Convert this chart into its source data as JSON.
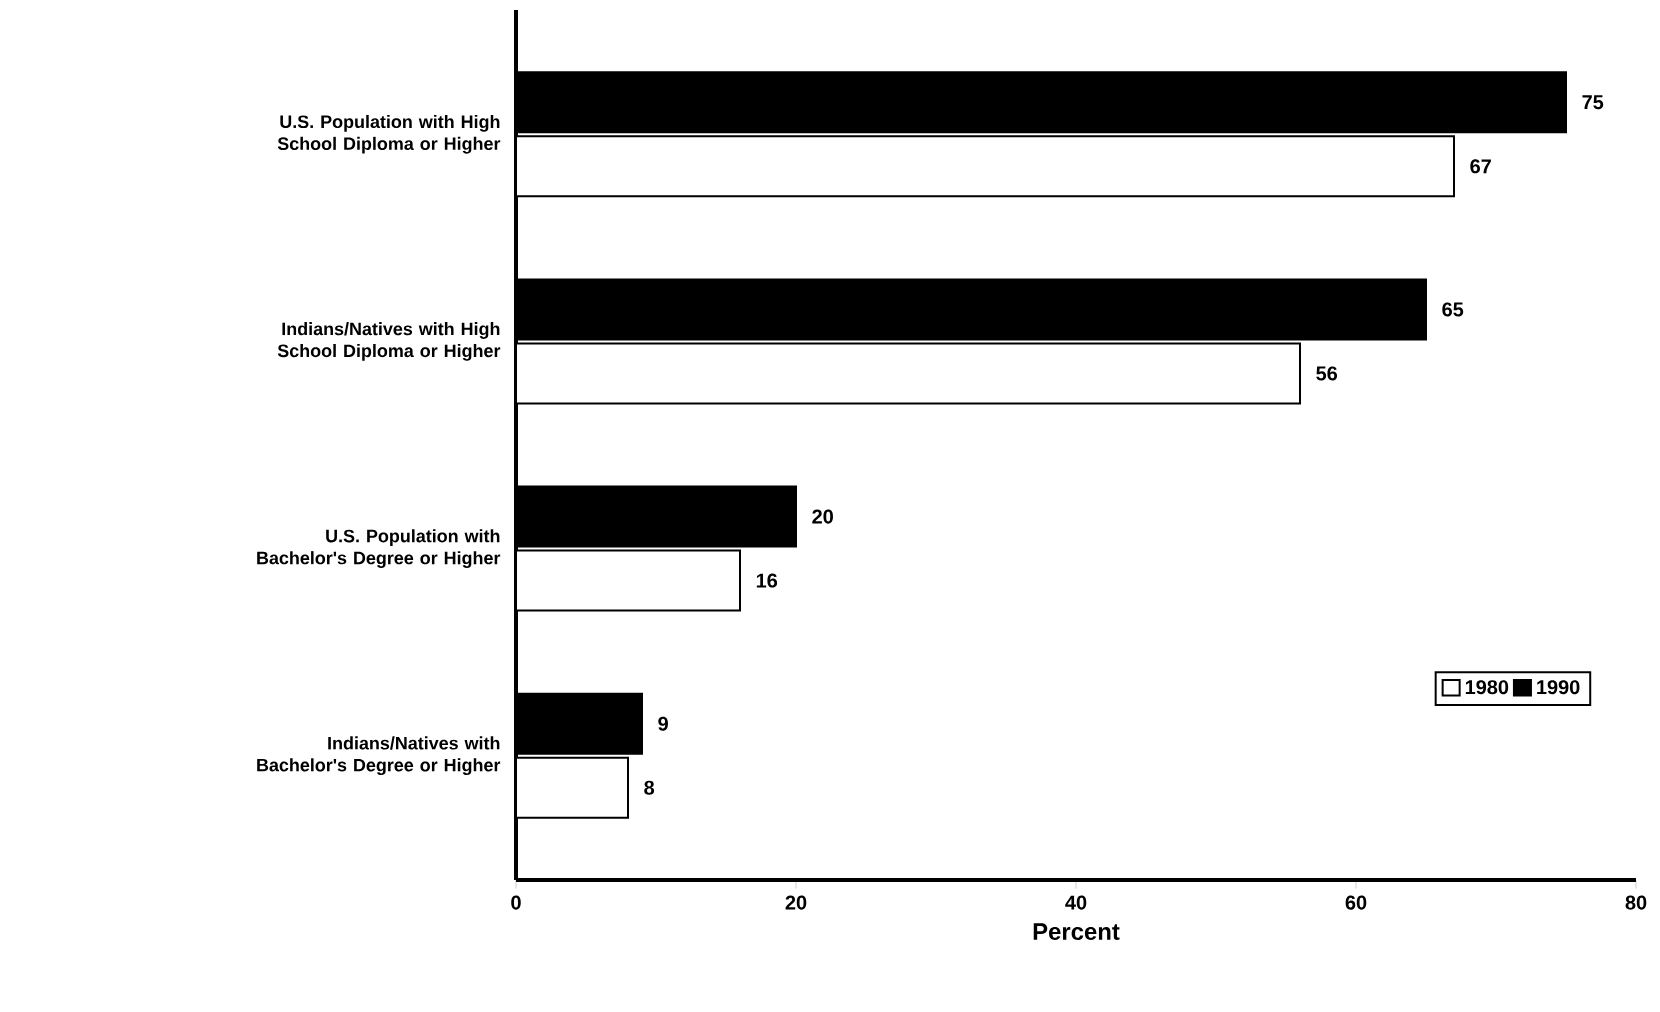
{
  "chart_data": {
    "type": "bar",
    "orientation": "horizontal",
    "xlabel": "Percent",
    "categories": [
      "U.S. Population with High School Diploma or Higher",
      "Indians/Natives with High School Diploma or Higher",
      "U.S. Population with Bachelor's Degree or Higher",
      "Indians/Natives with Bachelor's Degree or Higher"
    ],
    "series": [
      {
        "name": "1980",
        "color": "#ffffff",
        "values": [
          67,
          56,
          16,
          8
        ]
      },
      {
        "name": "1990",
        "color": "#000000",
        "values": [
          75,
          65,
          20,
          9
        ]
      }
    ],
    "xlim": [
      0,
      80
    ],
    "xticks": [
      0,
      20,
      40,
      60,
      80
    ],
    "data_labels": true,
    "legend": "bottom right",
    "grid": false
  }
}
